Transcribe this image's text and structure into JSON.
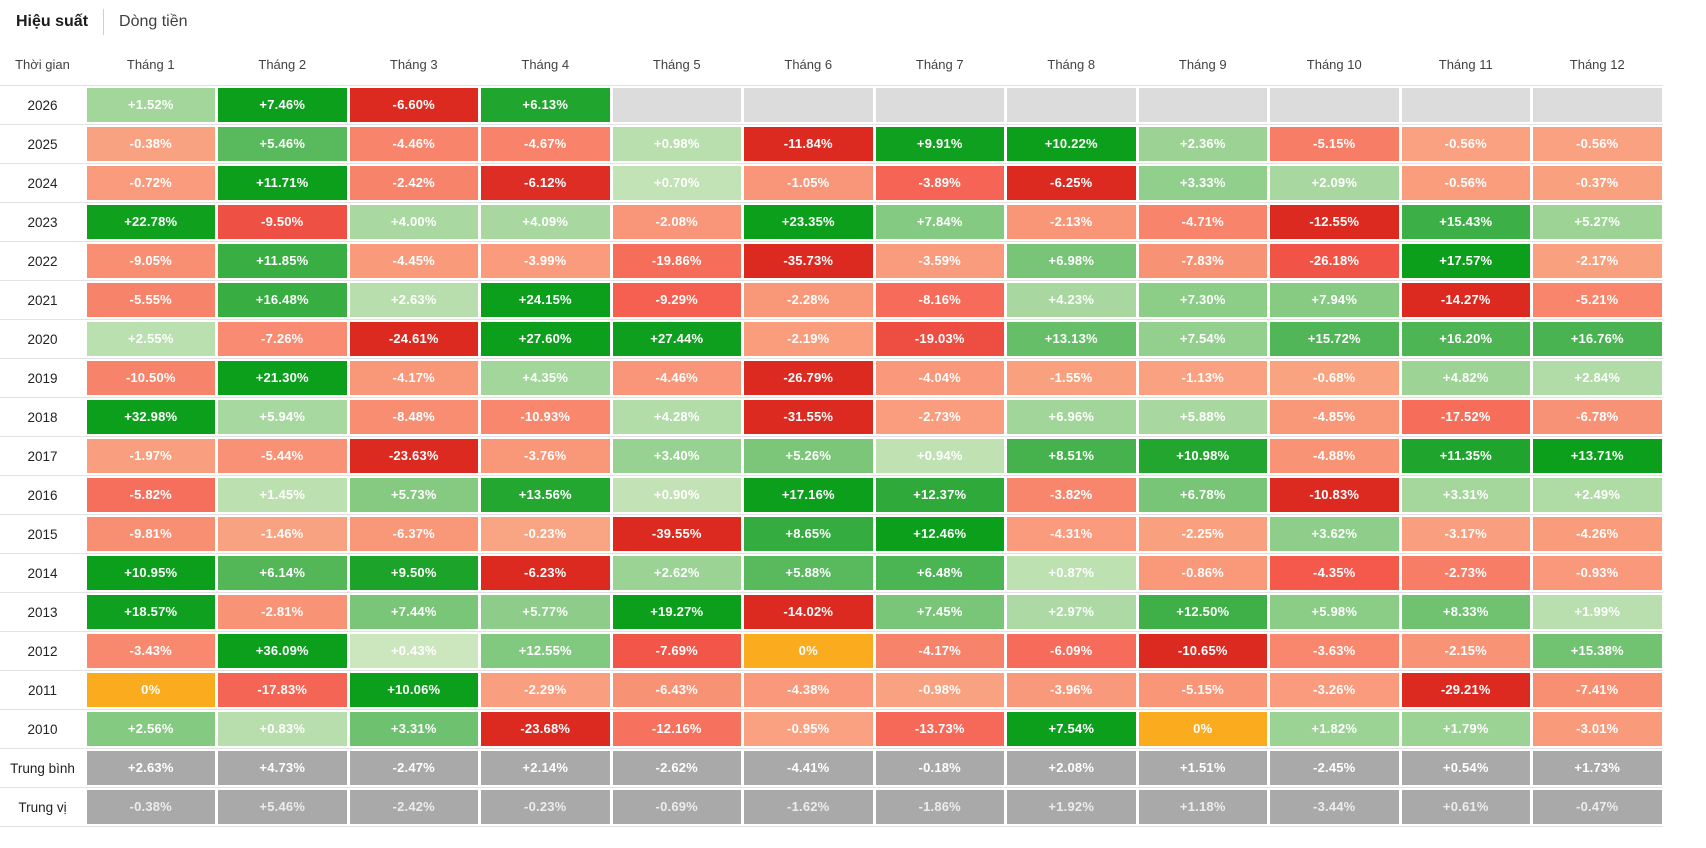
{
  "tabs": [
    {
      "label": "Hiệu suất",
      "active": true
    },
    {
      "label": "Dòng tiền",
      "active": false
    }
  ],
  "palette": {
    "green_stops": [
      {
        "t": 0,
        "c": "#cfe8c0"
      },
      {
        "t": 0.45,
        "c": "#6cc06d"
      },
      {
        "t": 0.75,
        "c": "#28a835"
      },
      {
        "t": 1,
        "c": "#0c9f1c"
      }
    ],
    "red_stops": [
      {
        "t": 0,
        "c": "#f9a583"
      },
      {
        "t": 0.4,
        "c": "#f8826a"
      },
      {
        "t": 0.7,
        "c": "#f4594c"
      },
      {
        "t": 1,
        "c": "#dc2a21"
      }
    ],
    "zero": "#fbab1e",
    "empty": "#dcdcdc",
    "summary_bg": "#a9a9a9",
    "summary_text": "#ffffff",
    "summary_text_dim": "rgba(255,255,255,0.78)",
    "row_line": "#e2e2e2"
  },
  "chart_data": {
    "type": "heatmap",
    "unit": "%",
    "time_label": "Thời gian",
    "columns": [
      "Tháng 1",
      "Tháng 2",
      "Tháng 3",
      "Tháng 4",
      "Tháng 5",
      "Tháng 6",
      "Tháng 7",
      "Tháng 8",
      "Tháng 9",
      "Tháng 10",
      "Tháng 11",
      "Tháng 12"
    ],
    "color_rule": "per-row normalization: positives scaled to row positive max (green), negatives scaled to row negative min (red), zero = orange, blank = gray",
    "rows": [
      {
        "label": "2026",
        "values": [
          1.52,
          7.46,
          -6.6,
          6.13,
          null,
          null,
          null,
          null,
          null,
          null,
          null,
          null
        ]
      },
      {
        "label": "2025",
        "values": [
          -0.38,
          5.46,
          -4.46,
          -4.67,
          0.98,
          -11.84,
          9.91,
          10.22,
          2.36,
          -5.15,
          -0.56,
          -0.56
        ]
      },
      {
        "label": "2024",
        "values": [
          -0.72,
          11.71,
          -2.42,
          -6.12,
          0.7,
          -1.05,
          -3.89,
          -6.25,
          3.33,
          2.09,
          -0.56,
          -0.37
        ]
      },
      {
        "label": "2023",
        "values": [
          22.78,
          -9.5,
          4.0,
          4.09,
          -2.08,
          23.35,
          7.84,
          -2.13,
          -4.71,
          -12.55,
          15.43,
          5.27
        ]
      },
      {
        "label": "2022",
        "values": [
          -9.05,
          11.85,
          -4.45,
          -3.99,
          -19.86,
          -35.73,
          -3.59,
          6.98,
          -7.83,
          -26.18,
          17.57,
          -2.17
        ]
      },
      {
        "label": "2021",
        "values": [
          -5.55,
          16.48,
          2.63,
          24.15,
          -9.29,
          -2.28,
          -8.16,
          4.23,
          7.3,
          7.94,
          -14.27,
          -5.21
        ]
      },
      {
        "label": "2020",
        "values": [
          2.55,
          -7.26,
          -24.61,
          27.6,
          27.44,
          -2.19,
          -19.03,
          13.13,
          7.54,
          15.72,
          16.2,
          16.76
        ]
      },
      {
        "label": "2019",
        "values": [
          -10.5,
          21.3,
          -4.17,
          4.35,
          -4.46,
          -26.79,
          -4.04,
          -1.55,
          -1.13,
          -0.68,
          4.82,
          2.84
        ]
      },
      {
        "label": "2018",
        "values": [
          32.98,
          5.94,
          -8.48,
          -10.93,
          4.28,
          -31.55,
          -2.73,
          6.96,
          5.88,
          -4.85,
          -17.52,
          -6.78
        ]
      },
      {
        "label": "2017",
        "values": [
          -1.97,
          -5.44,
          -23.63,
          -3.76,
          3.4,
          5.26,
          0.94,
          8.51,
          10.98,
          -4.88,
          11.35,
          13.71
        ]
      },
      {
        "label": "2016",
        "values": [
          -5.82,
          1.45,
          5.73,
          13.56,
          0.9,
          17.16,
          12.37,
          -3.82,
          6.78,
          -10.83,
          3.31,
          2.49
        ]
      },
      {
        "label": "2015",
        "values": [
          -9.81,
          -1.46,
          -6.37,
          -0.23,
          -39.55,
          8.65,
          12.46,
          -4.31,
          -2.25,
          3.62,
          -3.17,
          -4.26
        ]
      },
      {
        "label": "2014",
        "values": [
          10.95,
          6.14,
          9.5,
          -6.23,
          2.62,
          5.88,
          6.48,
          0.87,
          -0.86,
          -4.35,
          -2.73,
          -0.93
        ]
      },
      {
        "label": "2013",
        "values": [
          18.57,
          -2.81,
          7.44,
          5.77,
          19.27,
          -14.02,
          7.45,
          2.97,
          12.5,
          5.98,
          8.33,
          1.99
        ]
      },
      {
        "label": "2012",
        "values": [
          -3.43,
          36.09,
          0.43,
          12.55,
          -7.69,
          0,
          -4.17,
          -6.09,
          -10.65,
          -3.63,
          -2.15,
          15.38
        ]
      },
      {
        "label": "2011",
        "values": [
          0,
          -17.83,
          10.06,
          -2.29,
          -6.43,
          -4.38,
          -0.98,
          -3.96,
          -5.15,
          -3.26,
          -29.21,
          -7.41
        ]
      },
      {
        "label": "2010",
        "values": [
          2.56,
          0.83,
          3.31,
          -23.68,
          -12.16,
          -0.95,
          -13.73,
          7.54,
          0,
          1.82,
          1.79,
          -3.01
        ]
      }
    ],
    "summary_rows": [
      {
        "label": "Trung bình",
        "values": [
          2.63,
          4.73,
          -2.47,
          2.14,
          -2.62,
          -4.41,
          -0.18,
          2.08,
          1.51,
          -2.45,
          0.54,
          1.73
        ]
      },
      {
        "label": "Trung vị",
        "values": [
          -0.38,
          5.46,
          -2.42,
          -0.23,
          -0.69,
          -1.62,
          -1.86,
          1.92,
          1.18,
          -3.44,
          0.61,
          -0.47
        ]
      }
    ]
  }
}
